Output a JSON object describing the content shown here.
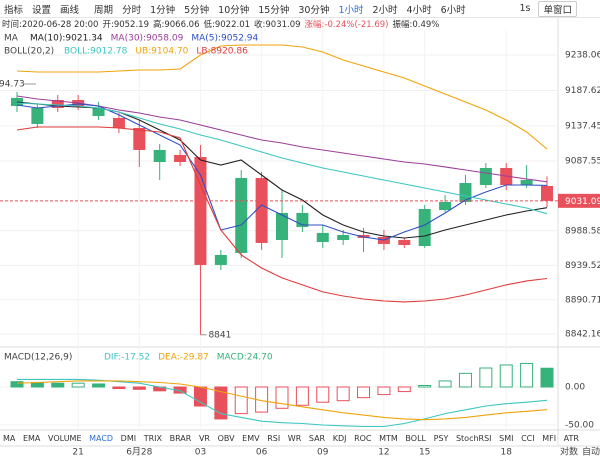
{
  "toolbar": {
    "tools": [
      "指标",
      "设置",
      "画线"
    ],
    "period_label": "周期",
    "periods": [
      "分时",
      "1分钟",
      "5分钟",
      "10分钟",
      "15分钟",
      "30分钟",
      "1小时",
      "2小时",
      "4小时",
      "6小时"
    ],
    "active_period": 6,
    "interval": "1s",
    "window_mode": "单窗口"
  },
  "info": [
    "时间:2020-06-28 20:00",
    "开:9052.19",
    "高:9066.06",
    "低:9022.01",
    "收:9031.09",
    "涨幅:-0.24%(-21.69)",
    "振幅:0.49%"
  ],
  "chart_data": [
    {
      "type": "candlestick",
      "categories": [
        null,
        null,
        null,
        "21",
        null,
        null,
        "6月28",
        null,
        null,
        "03",
        null,
        null,
        "06",
        null,
        null,
        "09",
        null,
        null,
        "12",
        null,
        "15",
        null,
        null,
        null,
        "18",
        null,
        null
      ],
      "open": [
        9165.7,
        9140.2,
        9174.2,
        9174.2,
        9151.5,
        9148.7,
        9134.5,
        9086.2,
        9096.2,
        9093.3,
        8940.1,
        8957.1,
        9063.5,
        8975.5,
        8994.0,
        8972.7,
        8975.5,
        8982.6,
        8979.8,
        8975.5,
        8967.0,
        9018.1,
        9029.5,
        9053.6,
        9077.7,
        9053.6,
        9052.19
      ],
      "high": [
        9185.6,
        9170.0,
        9181.3,
        9181.3,
        9171.4,
        9155.8,
        9145.8,
        9111.8,
        9103.3,
        9110.4,
        8961.4,
        9074.9,
        9072.0,
        9046.5,
        9025.2,
        8996.8,
        8989.7,
        8992.6,
        8989.7,
        8978.4,
        9025.2,
        9039.4,
        9067.8,
        9084.8,
        9084.8,
        9082.0,
        9066.06
      ],
      "low": [
        9157.2,
        9134.5,
        9157.2,
        9160.0,
        9145.8,
        9127.4,
        9079.2,
        9060.7,
        9080.5,
        8841,
        8932.9,
        8950.0,
        8961.4,
        8950.0,
        8986.9,
        8964.2,
        8968.4,
        8958.5,
        8961.4,
        8964.2,
        8964.2,
        9015.3,
        9025.2,
        9049.3,
        9046.5,
        9049.3,
        9022.01
      ],
      "close": [
        9177.1,
        9162.9,
        9162.9,
        9165.7,
        9162.9,
        9134.5,
        9103.3,
        9103.3,
        9086.2,
        8940.1,
        8954.3,
        9063.5,
        8971.3,
        9013.9,
        9013.9,
        8985.5,
        8982.6,
        8978.4,
        8969.9,
        8968.4,
        9019.5,
        9029.5,
        9056.4,
        9077.7,
        9053.6,
        9060.7,
        9031.09
      ],
      "up_color": "#37b27a",
      "down_color": "#e8505b",
      "ylim": [
        8826.5,
        9284.9
      ],
      "yticks": [
        9238.06,
        9187.62,
        9137.45,
        9087.55,
        8988.58,
        8939.52,
        8890.71,
        8842.16
      ],
      "grid": true,
      "high_label": "94.73",
      "overlays": [
        {
          "label": "MA",
          "series": [
            {
              "name": "MA(10):9021.34",
              "color": "#222222",
              "values": [
                9171.4,
                9168.5,
                9165.7,
                9164.3,
                9162.9,
                9157.2,
                9145.8,
                9131.6,
                9117.5,
                9089.1,
                9082.0,
                9089.1,
                9067.8,
                9046.5,
                9032.3,
                9011.0,
                8996.8,
                8986.9,
                8981.2,
                8978.4,
                8981.2,
                8989.7,
                8996.8,
                9003.9,
                9011.0,
                9016.7,
                9021.34
              ]
            },
            {
              "name": "MA(30):9058.09",
              "color": "#9b3f9b",
              "values": [
                9179.9,
                9175.6,
                9172.8,
                9170.0,
                9165.7,
                9160.0,
                9155.8,
                9150.1,
                9145.8,
                9138.7,
                9131.6,
                9124.5,
                9117.5,
                9113.2,
                9107.5,
                9103.3,
                9099.0,
                9094.7,
                9090.5,
                9086.2,
                9083.4,
                9079.2,
                9074.9,
                9070.6,
                9066.4,
                9062.1,
                9058.09
              ]
            },
            {
              "name": "MA(5):9052.94",
              "color": "#2f4fc4",
              "values": [
                9167.1,
                9162.9,
                9165.7,
                9168.5,
                9165.7,
                9153.0,
                9138.7,
                9124.5,
                9110.4,
                9067.8,
                8989.7,
                8996.8,
                9025.2,
                9011.0,
                8996.8,
                8996.8,
                8986.9,
                8979.8,
                8975.5,
                8986.9,
                8996.8,
                9013.9,
                9032.3,
                9043.6,
                9053.6,
                9053.6,
                9052.94
              ]
            }
          ]
        },
        {
          "label": "BOLL(20,2)",
          "series": [
            {
              "name": "BOLL:9012.78",
              "color": "#3cc6c0",
              "values": [
                9170.0,
                9168.5,
                9167.1,
                9165.7,
                9162.9,
                9157.2,
                9148.7,
                9140.2,
                9133.1,
                9124.5,
                9117.5,
                9108.9,
                9100.4,
                9091.9,
                9084.8,
                9077.7,
                9072.0,
                9066.4,
                9060.7,
                9055.0,
                9049.3,
                9043.6,
                9038.0,
                9032.3,
                9026.6,
                9020.9,
                9012.78
              ]
            },
            {
              "name": "UB:9104.70",
              "color": "#f0a30a",
              "values": [
                9215.4,
                9213.9,
                9213.9,
                9213.9,
                9213.9,
                9215.4,
                9216.8,
                9216.8,
                9218.2,
                9238.1,
                9250.8,
                9252.2,
                9252.2,
                9252.2,
                9249.4,
                9242.3,
                9231.0,
                9222.4,
                9213.9,
                9205.4,
                9194.1,
                9182.7,
                9171.4,
                9160.0,
                9145.8,
                9128.8,
                9104.7
              ]
            },
            {
              "name": "LB:8920.86",
              "color": "#e03c3c",
              "values": [
                9131.6,
                9135.9,
                9135.9,
                9135.9,
                9135.9,
                9134.5,
                9131.6,
                9128.8,
                9120.3,
                9053.6,
                8989.7,
                8954.3,
                8935.8,
                8921.7,
                8911.8,
                8901.8,
                8896.1,
                8891.8,
                8889.0,
                8887.6,
                8889.0,
                8891.8,
                8897.5,
                8904.6,
                8911.8,
                8917.4,
                8920.86
              ]
            }
          ]
        }
      ]
    },
    {
      "type": "macd",
      "title": "MACD(12,26,9)",
      "ylim": [
        -59.2,
        48.7
      ],
      "yticks": [
        {
          "value": 0,
          "label": "0.00"
        },
        {
          "value": -50,
          "label": "-50.00"
        }
      ],
      "series": [
        {
          "name": "DIF:-17.52",
          "color": "#3cc6c0",
          "values": [
            10,
            10,
            10,
            10,
            9,
            7,
            5,
            0,
            -5,
            -20,
            -35,
            -40,
            -45,
            -47,
            -48,
            -50,
            -51,
            -52,
            -52,
            -48,
            -42,
            -35,
            -30,
            -25,
            -22,
            -20,
            -17.52
          ]
        },
        {
          "name": "DEA:-29.87",
          "color": "#f0a30a",
          "values": [
            5,
            6,
            7,
            8,
            8,
            8,
            7,
            6,
            4,
            0,
            -6,
            -12,
            -18,
            -22,
            -26,
            -30,
            -34,
            -37,
            -40,
            -42,
            -43,
            -42,
            -40,
            -37,
            -34,
            -32,
            -29.87
          ]
        }
      ],
      "histogram": {
        "name": "MACD:24.70",
        "up_color": "#37b27a",
        "down_color": "#e8505b",
        "values": [
          7,
          6,
          5,
          5,
          4,
          -2,
          -3,
          -5,
          -8,
          -25,
          -42,
          -35,
          -33,
          -28,
          -24,
          -20,
          -18,
          -14,
          -10,
          -6,
          2,
          8,
          18,
          25,
          29,
          31,
          24.7
        ]
      }
    }
  ],
  "indicator_tabs": [
    "MA",
    "EMA",
    "VOLUME",
    "MACD",
    "DMI",
    "TRIX",
    "BRAR",
    "VR",
    "OBV",
    "EMV",
    "RSI",
    "WR",
    "SAR",
    "KDJ",
    "ROC",
    "MTM",
    "BOLL",
    "PSY",
    "StochRSI",
    "SMI",
    "CCI",
    "MFI",
    "ATR"
  ],
  "active_tab": 3,
  "scale_options": [
    "对数",
    "自动"
  ]
}
